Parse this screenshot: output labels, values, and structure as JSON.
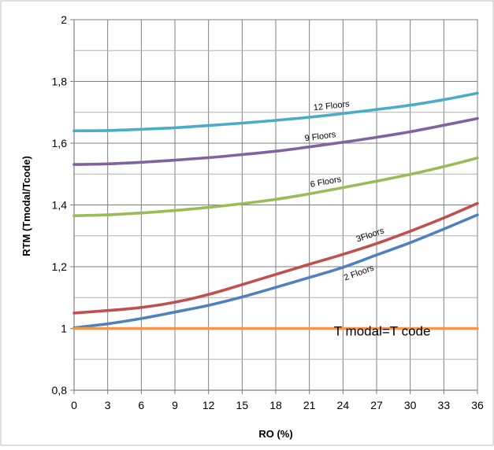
{
  "chart_data": {
    "type": "line",
    "title": "",
    "xlabel": "RO (%)",
    "ylabel": "RTM (Tmodal/Tcode)",
    "x_ticks": [
      "0",
      "3",
      "6",
      "9",
      "12",
      "15",
      "18",
      "21",
      "24",
      "27",
      "30",
      "33",
      "36"
    ],
    "y_ticks": [
      "0,8",
      "1",
      "1,2",
      "1,4",
      "1,6",
      "1,8",
      "2"
    ],
    "xlim": [
      0,
      36
    ],
    "ylim": [
      0.8,
      2.0
    ],
    "grid": true,
    "x": [
      0,
      3,
      6,
      9,
      12,
      15,
      18,
      21,
      24,
      27,
      30,
      33,
      36
    ],
    "series": [
      {
        "name": "12 Floors",
        "color": "#4bacc6",
        "values": [
          1.64,
          1.641,
          1.645,
          1.65,
          1.657,
          1.665,
          1.674,
          1.684,
          1.696,
          1.709,
          1.723,
          1.741,
          1.762
        ]
      },
      {
        "name": "9 Floors",
        "color": "#8064a2",
        "values": [
          1.531,
          1.533,
          1.538,
          1.545,
          1.553,
          1.563,
          1.574,
          1.588,
          1.603,
          1.619,
          1.637,
          1.658,
          1.68
        ]
      },
      {
        "name": "6 Floors",
        "color": "#9bbb59",
        "values": [
          1.365,
          1.368,
          1.374,
          1.382,
          1.392,
          1.404,
          1.418,
          1.436,
          1.456,
          1.477,
          1.499,
          1.524,
          1.552
        ]
      },
      {
        "name": "3Floors",
        "color": "#c0504d",
        "values": [
          1.05,
          1.058,
          1.068,
          1.085,
          1.11,
          1.142,
          1.175,
          1.208,
          1.24,
          1.275,
          1.315,
          1.358,
          1.405
        ]
      },
      {
        "name": "2 Floors",
        "color": "#4f81bd",
        "values": [
          1.002,
          1.015,
          1.032,
          1.053,
          1.075,
          1.102,
          1.133,
          1.165,
          1.198,
          1.238,
          1.278,
          1.322,
          1.368
        ]
      },
      {
        "name": "T modal=T code",
        "color": "#f79646",
        "values": [
          1.0,
          1.0,
          1.0,
          1.0,
          1.0,
          1.0,
          1.0,
          1.0,
          1.0,
          1.0,
          1.0,
          1.0,
          1.0
        ]
      }
    ]
  }
}
